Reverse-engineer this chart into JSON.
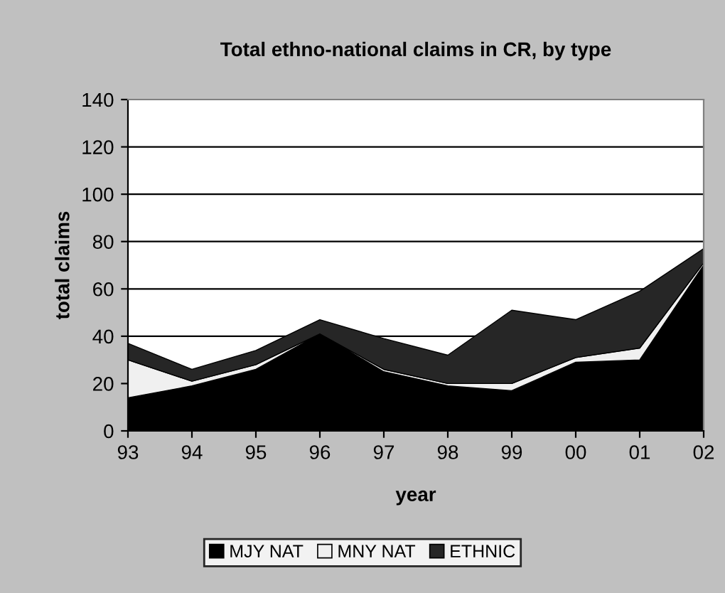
{
  "chart_data": {
    "type": "area",
    "stacked": true,
    "title": "Total ethno-national claims in CR, by type",
    "xlabel": "year",
    "ylabel": "total claims",
    "categories": [
      "93",
      "94",
      "95",
      "96",
      "97",
      "98",
      "99",
      "00",
      "01",
      "02"
    ],
    "series": [
      {
        "name": "MJY NAT",
        "color": "#000000",
        "values": [
          14,
          19,
          26,
          41,
          25,
          19,
          17,
          29,
          30,
          70
        ]
      },
      {
        "name": "MNY NAT",
        "color": "#f0f0f0",
        "values": [
          16,
          2,
          2,
          0,
          1,
          1,
          3,
          2,
          5,
          1
        ]
      },
      {
        "name": "ETHNIC",
        "color": "#262626",
        "values": [
          7,
          5,
          6,
          6,
          13,
          12,
          31,
          16,
          24,
          6
        ]
      }
    ],
    "ylim": [
      0,
      140
    ],
    "yticks": [
      0,
      20,
      40,
      60,
      80,
      100,
      120,
      140
    ],
    "grid": "y",
    "legend": "bottom"
  }
}
